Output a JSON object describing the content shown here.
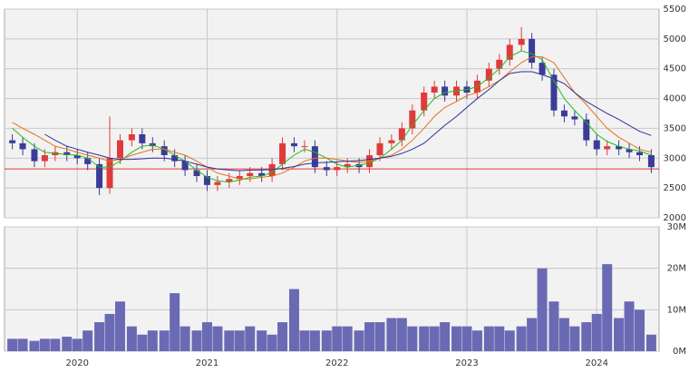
{
  "chart_data": [
    {
      "type": "candlestick",
      "x": [
        2019.5,
        2019.58,
        2019.67,
        2019.75,
        2019.83,
        2019.92,
        2020.0,
        2020.08,
        2020.17,
        2020.25,
        2020.33,
        2020.42,
        2020.5,
        2020.58,
        2020.67,
        2020.75,
        2020.83,
        2020.92,
        2021.0,
        2021.08,
        2021.17,
        2021.25,
        2021.33,
        2021.42,
        2021.5,
        2021.58,
        2021.67,
        2021.75,
        2021.83,
        2021.92,
        2022.0,
        2022.08,
        2022.17,
        2022.25,
        2022.33,
        2022.42,
        2022.5,
        2022.58,
        2022.67,
        2022.75,
        2022.83,
        2022.92,
        2023.0,
        2023.08,
        2023.17,
        2023.25,
        2023.33,
        2023.42,
        2023.5,
        2023.58,
        2023.67,
        2023.75,
        2023.83,
        2023.92,
        2024.0,
        2024.08,
        2024.17,
        2024.25,
        2024.33,
        2024.42
      ],
      "open": [
        3300,
        3250,
        3150,
        2950,
        3050,
        3100,
        3050,
        3000,
        2900,
        2500,
        3000,
        3300,
        3400,
        3250,
        3200,
        3050,
        2950,
        2800,
        2700,
        2550,
        2600,
        2650,
        2700,
        2750,
        2700,
        2900,
        3250,
        3200,
        3200,
        2850,
        2800,
        2850,
        2900,
        2850,
        3050,
        3250,
        3300,
        3500,
        3800,
        4100,
        4200,
        4050,
        4200,
        4100,
        4300,
        4500,
        4650,
        4900,
        5000,
        4600,
        4400,
        3800,
        3700,
        3650,
        3300,
        3150,
        3200,
        3150,
        3100,
        3050
      ],
      "high": [
        3400,
        3350,
        3250,
        3150,
        3200,
        3200,
        3150,
        3100,
        3000,
        3700,
        3400,
        3500,
        3500,
        3350,
        3300,
        3150,
        3050,
        2900,
        2800,
        2700,
        2750,
        2800,
        2850,
        2850,
        3000,
        3350,
        3350,
        3300,
        3300,
        2950,
        2950,
        3000,
        3000,
        3150,
        3350,
        3400,
        3600,
        3900,
        4200,
        4300,
        4300,
        4300,
        4300,
        4400,
        4600,
        4750,
        5000,
        5200,
        5100,
        4700,
        4500,
        3900,
        3800,
        3750,
        3400,
        3300,
        3300,
        3250,
        3200,
        3150
      ],
      "low": [
        3150,
        3050,
        2850,
        2850,
        2950,
        2950,
        2900,
        2800,
        2380,
        2400,
        2900,
        3200,
        3150,
        3100,
        2950,
        2850,
        2700,
        2600,
        2450,
        2450,
        2500,
        2550,
        2600,
        2600,
        2600,
        2800,
        3100,
        3100,
        2750,
        2700,
        2700,
        2750,
        2750,
        2750,
        2950,
        3150,
        3200,
        3400,
        3700,
        4000,
        3950,
        3950,
        4000,
        4000,
        4200,
        4400,
        4550,
        4800,
        4500,
        4300,
        3700,
        3600,
        3550,
        3200,
        3050,
        3050,
        3050,
        3000,
        2950,
        2750
      ],
      "close": [
        3250,
        3150,
        2950,
        3050,
        3100,
        3050,
        3000,
        2900,
        2500,
        3000,
        3300,
        3400,
        3250,
        3200,
        3050,
        2950,
        2800,
        2700,
        2550,
        2600,
        2650,
        2700,
        2750,
        2700,
        2900,
        3250,
        3200,
        3200,
        2850,
        2800,
        2850,
        2900,
        2850,
        3050,
        3250,
        3300,
        3500,
        3800,
        4100,
        4200,
        4050,
        4200,
        4100,
        4300,
        4500,
        4650,
        4900,
        5000,
        4600,
        4400,
        3800,
        3700,
        3650,
        3300,
        3150,
        3200,
        3150,
        3100,
        3050,
        2850
      ],
      "up_color": "#e03a3a",
      "down_color": "#3b3b98",
      "series": [
        {
          "color": "#22bb22",
          "values": [
            3500,
            3350,
            3200,
            3100,
            3080,
            3060,
            3050,
            3000,
            2850,
            2850,
            2950,
            3100,
            3200,
            3220,
            3150,
            3050,
            2950,
            2800,
            2680,
            2620,
            2600,
            2630,
            2680,
            2700,
            2760,
            2900,
            3050,
            3150,
            3100,
            3000,
            2900,
            2850,
            2880,
            2920,
            3000,
            3150,
            3300,
            3550,
            3800,
            4000,
            4100,
            4130,
            4150,
            4200,
            4350,
            4500,
            4700,
            4800,
            4750,
            4650,
            4300,
            4000,
            3800,
            3600,
            3400,
            3280,
            3200,
            3150,
            3120,
            3050
          ]
        },
        {
          "color": "#e8701a",
          "values": [
            3600,
            3500,
            3400,
            3300,
            3200,
            3150,
            3100,
            3050,
            3000,
            2950,
            2980,
            3050,
            3100,
            3150,
            3150,
            3100,
            3050,
            2950,
            2850,
            2750,
            2700,
            2650,
            2650,
            2680,
            2700,
            2750,
            2850,
            2950,
            3000,
            3000,
            2980,
            2950,
            2930,
            2950,
            3000,
            3050,
            3150,
            3300,
            3500,
            3700,
            3850,
            3950,
            4050,
            4100,
            4200,
            4300,
            4450,
            4600,
            4700,
            4700,
            4600,
            4350,
            4100,
            3900,
            3700,
            3500,
            3350,
            3250,
            3150,
            3100
          ]
        },
        {
          "color": "#3030a0",
          "values": [
            null,
            null,
            null,
            3400,
            3300,
            3200,
            3150,
            3100,
            3050,
            3000,
            2980,
            2980,
            2990,
            3000,
            3000,
            2980,
            2950,
            2900,
            2850,
            2820,
            2800,
            2790,
            2800,
            2800,
            2810,
            2830,
            2860,
            2900,
            2920,
            2930,
            2940,
            2950,
            2960,
            2980,
            3000,
            3030,
            3080,
            3150,
            3250,
            3400,
            3550,
            3700,
            3850,
            4000,
            4150,
            4300,
            4420,
            4450,
            4450,
            4400,
            4330,
            4250,
            4100,
            3950,
            3850,
            3750,
            3650,
            3550,
            3450,
            3380
          ]
        }
      ],
      "reference_line": {
        "value": 2820,
        "color": "#e03a3a"
      },
      "xlim": [
        2019.44,
        2024.48
      ],
      "ylim": [
        2000,
        5500
      ],
      "yticks": [
        2000,
        2500,
        3000,
        3500,
        4000,
        4500,
        5000,
        5500
      ],
      "grid": true
    },
    {
      "type": "bar",
      "x": [
        2019.5,
        2019.58,
        2019.67,
        2019.75,
        2019.83,
        2019.92,
        2020.0,
        2020.08,
        2020.17,
        2020.25,
        2020.33,
        2020.42,
        2020.5,
        2020.58,
        2020.67,
        2020.75,
        2020.83,
        2020.92,
        2021.0,
        2021.08,
        2021.17,
        2021.25,
        2021.33,
        2021.42,
        2021.5,
        2021.58,
        2021.67,
        2021.75,
        2021.83,
        2021.92,
        2022.0,
        2022.08,
        2022.17,
        2022.25,
        2022.33,
        2022.42,
        2022.5,
        2022.58,
        2022.67,
        2022.75,
        2022.83,
        2022.92,
        2023.0,
        2023.08,
        2023.17,
        2023.25,
        2023.33,
        2023.42,
        2023.5,
        2023.58,
        2023.67,
        2023.75,
        2023.83,
        2023.92,
        2024.0,
        2024.08,
        2024.17,
        2024.25,
        2024.33,
        2024.42
      ],
      "values": [
        3,
        3,
        2.5,
        3,
        3,
        3.5,
        3,
        5,
        7,
        9,
        12,
        6,
        4,
        5,
        5,
        14,
        6,
        5,
        7,
        6,
        5,
        5,
        6,
        5,
        4,
        7,
        15,
        5,
        5,
        5,
        6,
        6,
        5,
        7,
        7,
        8,
        8,
        6,
        6,
        6,
        7,
        6,
        6,
        5,
        6,
        6,
        5,
        6,
        8,
        20,
        12,
        8,
        6,
        7,
        9,
        21,
        8,
        12,
        10,
        4
      ],
      "color": "#6a6ab4",
      "xlim": [
        2019.44,
        2024.48
      ],
      "xticks": [
        {
          "value": 2020,
          "label": "2020"
        },
        {
          "value": 2021,
          "label": "2021"
        },
        {
          "value": 2022,
          "label": "2022"
        },
        {
          "value": 2023,
          "label": "2023"
        },
        {
          "value": 2024,
          "label": "2024"
        }
      ],
      "ylim": [
        0,
        30
      ],
      "yticks": [
        {
          "value": 0,
          "label": "0M"
        },
        {
          "value": 10,
          "label": "10M"
        },
        {
          "value": 20,
          "label": "20M"
        },
        {
          "value": 30,
          "label": "30M"
        }
      ],
      "grid": true
    }
  ]
}
